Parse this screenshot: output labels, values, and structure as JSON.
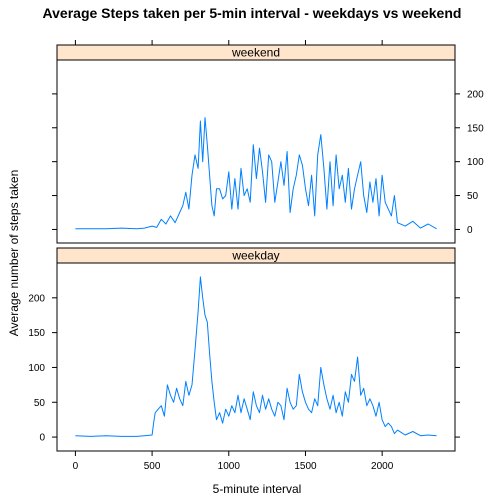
{
  "chart_data": {
    "type": "line",
    "title": "Average Steps taken per 5-min interval - weekdays vs weekend",
    "xlabel": "5-minute interval",
    "ylabel": "Average number of steps taken",
    "xlim": [
      -120,
      2475
    ],
    "ylim": [
      -20,
      250
    ],
    "x_ticks": [
      0,
      500,
      1000,
      1500,
      2000
    ],
    "y_ticks": [
      0,
      50,
      100,
      150,
      200
    ],
    "grid": false,
    "line_color": "#0080ff",
    "strip_color": "#ffe5cc",
    "panels": [
      {
        "name": "weekend",
        "x": [
          0,
          100,
          200,
          300,
          400,
          450,
          500,
          530,
          560,
          590,
          620,
          650,
          680,
          700,
          720,
          740,
          760,
          780,
          800,
          815,
          830,
          845,
          860,
          875,
          890,
          905,
          920,
          940,
          960,
          980,
          1000,
          1020,
          1040,
          1060,
          1080,
          1100,
          1120,
          1140,
          1160,
          1180,
          1200,
          1220,
          1240,
          1260,
          1280,
          1300,
          1320,
          1340,
          1360,
          1380,
          1400,
          1420,
          1440,
          1460,
          1480,
          1500,
          1520,
          1540,
          1560,
          1580,
          1600,
          1620,
          1640,
          1660,
          1680,
          1700,
          1720,
          1740,
          1760,
          1780,
          1800,
          1820,
          1840,
          1860,
          1880,
          1900,
          1920,
          1940,
          1960,
          1980,
          2000,
          2020,
          2040,
          2060,
          2080,
          2100,
          2150,
          2200,
          2250,
          2300,
          2355
        ],
        "values": [
          1,
          1,
          1,
          2,
          1,
          2,
          5,
          3,
          15,
          8,
          20,
          10,
          25,
          35,
          55,
          30,
          80,
          110,
          90,
          160,
          100,
          165,
          125,
          80,
          35,
          20,
          60,
          60,
          45,
          50,
          85,
          30,
          75,
          30,
          90,
          50,
          60,
          40,
          125,
          75,
          120,
          85,
          40,
          110,
          100,
          40,
          70,
          100,
          65,
          115,
          25,
          60,
          80,
          110,
          95,
          60,
          35,
          80,
          20,
          110,
          140,
          90,
          30,
          100,
          35,
          110,
          60,
          80,
          40,
          90,
          30,
          60,
          80,
          100,
          50,
          25,
          70,
          40,
          75,
          20,
          80,
          40,
          30,
          20,
          50,
          10,
          5,
          12,
          2,
          8,
          1
        ]
      },
      {
        "name": "weekday",
        "x": [
          0,
          100,
          200,
          300,
          400,
          450,
          500,
          510,
          520,
          540,
          560,
          580,
          600,
          620,
          640,
          660,
          680,
          700,
          720,
          740,
          760,
          780,
          800,
          815,
          830,
          845,
          860,
          875,
          890,
          905,
          920,
          940,
          960,
          980,
          1000,
          1020,
          1040,
          1060,
          1080,
          1100,
          1120,
          1140,
          1160,
          1180,
          1200,
          1220,
          1240,
          1260,
          1280,
          1300,
          1320,
          1340,
          1360,
          1380,
          1400,
          1420,
          1440,
          1460,
          1480,
          1500,
          1520,
          1540,
          1560,
          1580,
          1600,
          1620,
          1640,
          1660,
          1680,
          1700,
          1720,
          1740,
          1760,
          1780,
          1800,
          1820,
          1840,
          1860,
          1880,
          1900,
          1920,
          1940,
          1960,
          1980,
          2000,
          2020,
          2040,
          2060,
          2080,
          2100,
          2150,
          2200,
          2250,
          2300,
          2355
        ],
        "values": [
          2,
          1,
          2,
          1,
          1,
          2,
          3,
          20,
          35,
          40,
          45,
          30,
          75,
          60,
          50,
          70,
          55,
          45,
          80,
          60,
          75,
          125,
          180,
          230,
          200,
          175,
          165,
          120,
          80,
          50,
          25,
          35,
          20,
          40,
          30,
          45,
          35,
          60,
          35,
          55,
          40,
          25,
          65,
          45,
          35,
          60,
          40,
          55,
          40,
          30,
          50,
          45,
          25,
          70,
          50,
          40,
          45,
          90,
          65,
          50,
          40,
          35,
          55,
          45,
          100,
          75,
          55,
          40,
          60,
          35,
          50,
          30,
          65,
          50,
          90,
          80,
          115,
          60,
          70,
          45,
          55,
          45,
          30,
          50,
          25,
          15,
          20,
          15,
          5,
          10,
          3,
          8,
          2,
          3,
          2
        ]
      }
    ]
  }
}
